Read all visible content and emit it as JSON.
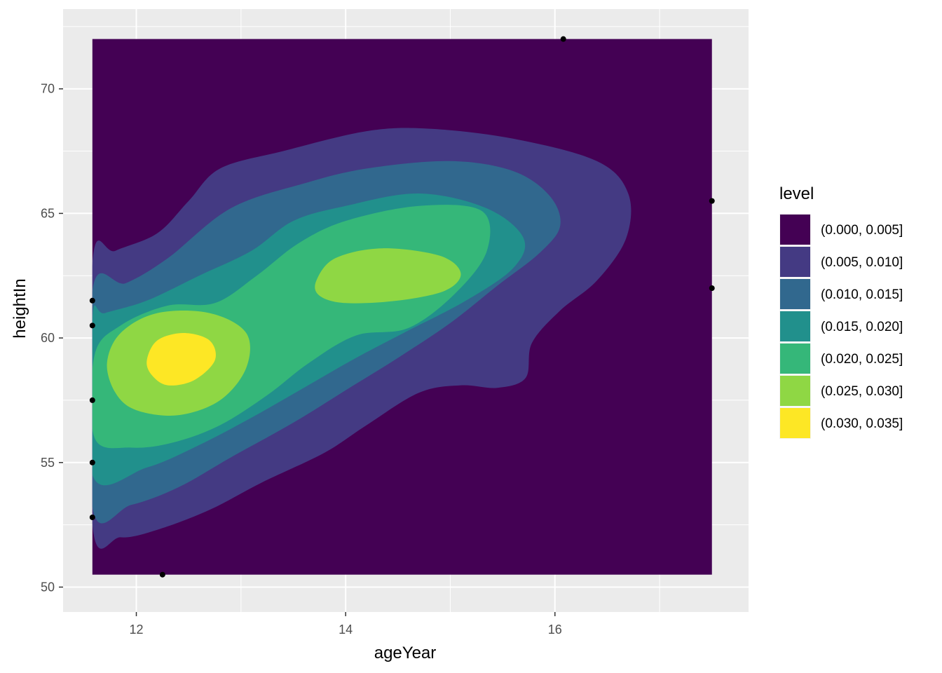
{
  "chart_data": {
    "type": "contour",
    "xlabel": "ageYear",
    "ylabel": "heightIn",
    "xlim": [
      11.3,
      17.85
    ],
    "ylim": [
      49.0,
      73.2
    ],
    "x_ticks": [
      12,
      14,
      16
    ],
    "y_ticks": [
      50,
      55,
      60,
      65,
      70
    ],
    "grid": true,
    "density_extent": {
      "x": [
        11.58,
        17.5
      ],
      "y": [
        50.5,
        72.0
      ]
    },
    "legend": {
      "title": "level",
      "position": "right",
      "items": [
        {
          "label": "(0.000, 0.005]",
          "color": "#440154"
        },
        {
          "label": "(0.005, 0.010]",
          "color": "#443A83"
        },
        {
          "label": "(0.010, 0.015]",
          "color": "#31688E"
        },
        {
          "label": "(0.015, 0.020]",
          "color": "#21908C"
        },
        {
          "label": "(0.020, 0.025]",
          "color": "#35B779"
        },
        {
          "label": "(0.025, 0.030]",
          "color": "#8FD744"
        },
        {
          "label": "(0.030, 0.035]",
          "color": "#FDE725"
        }
      ]
    },
    "bands": [
      {
        "level": 1,
        "color": "#443A83",
        "points": [
          [
            11.58,
            52.5
          ],
          [
            11.85,
            52.0
          ],
          [
            12.2,
            52.3
          ],
          [
            12.7,
            53.1
          ],
          [
            13.2,
            54.2
          ],
          [
            13.8,
            55.4
          ],
          [
            14.2,
            56.5
          ],
          [
            14.7,
            57.8
          ],
          [
            15.1,
            58.1
          ],
          [
            15.45,
            58.0
          ],
          [
            15.72,
            58.4
          ],
          [
            15.78,
            59.8
          ],
          [
            16.05,
            61.1
          ],
          [
            16.4,
            62.3
          ],
          [
            16.68,
            64.0
          ],
          [
            16.7,
            65.8
          ],
          [
            16.4,
            67.1
          ],
          [
            15.6,
            68.0
          ],
          [
            14.8,
            68.4
          ],
          [
            14.2,
            68.3
          ],
          [
            13.4,
            67.5
          ],
          [
            12.8,
            66.8
          ],
          [
            12.5,
            65.5
          ],
          [
            12.2,
            64.2
          ],
          [
            11.8,
            63.5
          ],
          [
            11.58,
            63.0
          ]
        ]
      },
      {
        "level": 2,
        "color": "#31688E",
        "points": [
          [
            11.58,
            53.2
          ],
          [
            11.95,
            53.3
          ],
          [
            12.4,
            54.0
          ],
          [
            12.9,
            55.2
          ],
          [
            13.5,
            56.6
          ],
          [
            14.0,
            57.9
          ],
          [
            14.5,
            59.2
          ],
          [
            15.0,
            60.6
          ],
          [
            15.45,
            62.1
          ],
          [
            15.85,
            63.4
          ],
          [
            16.05,
            64.5
          ],
          [
            15.95,
            65.7
          ],
          [
            15.6,
            66.7
          ],
          [
            15.0,
            67.1
          ],
          [
            14.2,
            66.8
          ],
          [
            13.6,
            66.2
          ],
          [
            12.9,
            65.2
          ],
          [
            12.3,
            63.2
          ],
          [
            11.9,
            62.2
          ],
          [
            11.58,
            61.9
          ]
        ]
      },
      {
        "level": 3,
        "color": "#21908C",
        "points": [
          [
            11.58,
            54.5
          ],
          [
            12.1,
            54.8
          ],
          [
            12.6,
            55.7
          ],
          [
            13.1,
            56.8
          ],
          [
            13.6,
            58.0
          ],
          [
            14.1,
            59.2
          ],
          [
            14.6,
            60.3
          ],
          [
            15.15,
            61.5
          ],
          [
            15.6,
            62.8
          ],
          [
            15.7,
            64.0
          ],
          [
            15.35,
            65.2
          ],
          [
            14.7,
            65.8
          ],
          [
            14.0,
            65.3
          ],
          [
            13.5,
            64.7
          ],
          [
            13.1,
            63.5
          ],
          [
            12.6,
            62.5
          ],
          [
            12.1,
            61.5
          ],
          [
            11.7,
            61.0
          ],
          [
            11.58,
            60.8
          ]
        ]
      },
      {
        "level": 4,
        "color": "#35B779",
        "points": [
          [
            11.6,
            56.0
          ],
          [
            11.95,
            55.6
          ],
          [
            12.35,
            55.8
          ],
          [
            12.8,
            56.5
          ],
          [
            13.25,
            57.7
          ],
          [
            13.65,
            59.0
          ],
          [
            14.1,
            60.1
          ],
          [
            14.6,
            60.4
          ],
          [
            15.05,
            61.8
          ],
          [
            15.35,
            63.5
          ],
          [
            15.3,
            65.1
          ],
          [
            14.7,
            65.3
          ],
          [
            14.0,
            64.7
          ],
          [
            13.55,
            63.8
          ],
          [
            13.15,
            62.5
          ],
          [
            12.75,
            61.4
          ],
          [
            12.3,
            61.3
          ],
          [
            11.85,
            60.5
          ],
          [
            11.6,
            59.3
          ]
        ]
      },
      {
        "level": 5,
        "color": "#8FD744",
        "points": [
          [
            11.8,
            57.8
          ],
          [
            12.0,
            57.1
          ],
          [
            12.4,
            56.9
          ],
          [
            12.8,
            57.5
          ],
          [
            13.05,
            58.8
          ],
          [
            13.05,
            60.2
          ],
          [
            12.7,
            61.0
          ],
          [
            12.2,
            61.0
          ],
          [
            11.85,
            60.2
          ],
          [
            11.72,
            59.0
          ]
        ]
      },
      {
        "level": 5,
        "color": "#8FD744",
        "points": [
          [
            13.75,
            61.7
          ],
          [
            14.0,
            61.4
          ],
          [
            14.5,
            61.5
          ],
          [
            14.95,
            61.9
          ],
          [
            15.1,
            62.6
          ],
          [
            14.9,
            63.3
          ],
          [
            14.35,
            63.6
          ],
          [
            13.9,
            63.2
          ],
          [
            13.72,
            62.3
          ]
        ]
      },
      {
        "level": 6,
        "color": "#FDE725",
        "points": [
          [
            12.15,
            58.5
          ],
          [
            12.3,
            58.1
          ],
          [
            12.55,
            58.3
          ],
          [
            12.75,
            59.1
          ],
          [
            12.7,
            59.9
          ],
          [
            12.45,
            60.2
          ],
          [
            12.2,
            59.9
          ],
          [
            12.1,
            59.1
          ]
        ]
      }
    ],
    "points": [
      [
        11.58,
        61.5
      ],
      [
        11.58,
        60.5
      ],
      [
        11.58,
        57.5
      ],
      [
        11.58,
        55.0
      ],
      [
        11.58,
        52.8
      ],
      [
        12.25,
        50.5
      ],
      [
        16.08,
        72.0
      ],
      [
        17.5,
        65.5
      ],
      [
        17.5,
        62.0
      ]
    ]
  }
}
